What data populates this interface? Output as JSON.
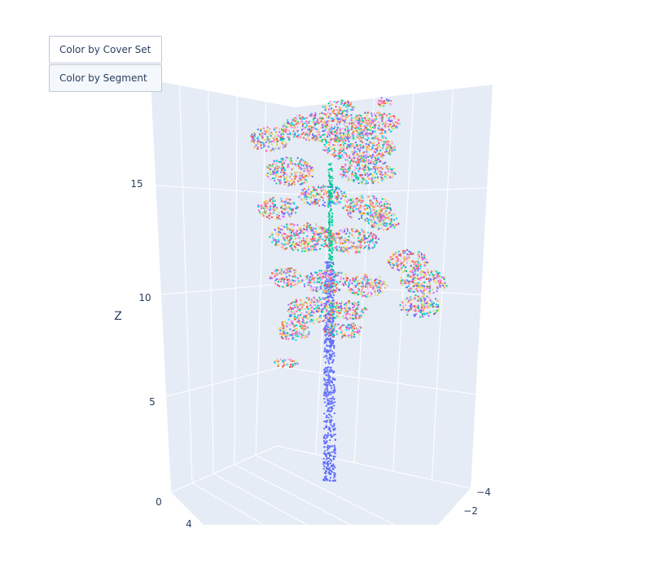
{
  "buttons": [
    {
      "label": "Color by Cover Set",
      "active": false
    },
    {
      "label": "Color by Segment",
      "active": true
    }
  ],
  "chart_data": {
    "type": "scatter3d",
    "title": "",
    "zlabel": "Z",
    "z_ticks": [
      "0",
      "5",
      "10",
      "15"
    ],
    "zlim": [
      0,
      19
    ],
    "y_ticks": [
      "−4",
      "−2"
    ],
    "x_ticks_partial": [
      "4"
    ],
    "grid": true,
    "background": "#e5ecf6",
    "trunk_color": "#636efa",
    "palette": [
      "#636efa",
      "#ef553b",
      "#00cc96",
      "#ab63fa",
      "#ffa15a",
      "#19d3f3",
      "#ff6692",
      "#b6e880",
      "#ff97ff",
      "#fecb52"
    ]
  }
}
